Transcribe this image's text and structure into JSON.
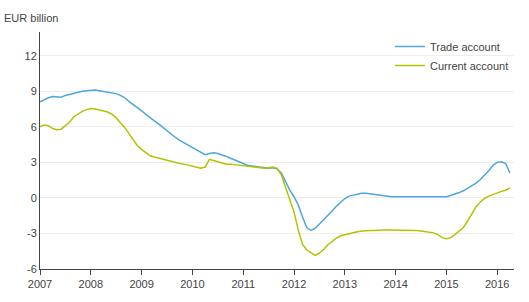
{
  "chart_data": {
    "type": "line",
    "ylabel": "EUR billion",
    "x": [
      2007.0,
      2007.083,
      2007.167,
      2007.25,
      2007.333,
      2007.417,
      2007.5,
      2007.583,
      2007.667,
      2007.75,
      2007.833,
      2007.917,
      2008.0,
      2008.083,
      2008.167,
      2008.25,
      2008.333,
      2008.417,
      2008.5,
      2008.583,
      2008.667,
      2008.75,
      2008.833,
      2008.917,
      2009.0,
      2009.083,
      2009.167,
      2009.25,
      2009.333,
      2009.417,
      2009.5,
      2009.583,
      2009.667,
      2009.75,
      2009.833,
      2009.917,
      2010.0,
      2010.083,
      2010.167,
      2010.25,
      2010.333,
      2010.417,
      2010.5,
      2010.583,
      2010.667,
      2010.75,
      2010.833,
      2010.917,
      2011.0,
      2011.083,
      2011.167,
      2011.25,
      2011.333,
      2011.417,
      2011.5,
      2011.583,
      2011.667,
      2011.75,
      2011.833,
      2011.917,
      2012.0,
      2012.083,
      2012.167,
      2012.25,
      2012.333,
      2012.417,
      2012.5,
      2012.583,
      2012.667,
      2012.75,
      2012.833,
      2012.917,
      2013.0,
      2013.083,
      2013.167,
      2013.25,
      2013.333,
      2013.417,
      2013.5,
      2013.583,
      2013.667,
      2013.75,
      2013.833,
      2013.917,
      2014.0,
      2014.083,
      2014.167,
      2014.25,
      2014.333,
      2014.417,
      2014.5,
      2014.583,
      2014.667,
      2014.75,
      2014.833,
      2014.917,
      2015.0,
      2015.083,
      2015.167,
      2015.25,
      2015.333,
      2015.417,
      2015.5,
      2015.583,
      2015.667,
      2015.75,
      2015.833,
      2015.917,
      2016.0,
      2016.083,
      2016.167,
      2016.25
    ],
    "series": [
      {
        "name": "Trade account",
        "color": "#4da6dc",
        "values": [
          8.1,
          8.3,
          8.45,
          8.55,
          8.5,
          8.5,
          8.65,
          8.75,
          8.85,
          8.9,
          9.0,
          9.05,
          9.1,
          9.1,
          9.05,
          9.0,
          8.95,
          8.9,
          8.8,
          8.65,
          8.45,
          8.15,
          7.9,
          7.65,
          7.35,
          7.05,
          6.75,
          6.5,
          6.25,
          5.95,
          5.65,
          5.35,
          5.1,
          4.85,
          4.65,
          4.45,
          4.25,
          4.05,
          3.85,
          3.65,
          3.75,
          3.8,
          3.75,
          3.65,
          3.5,
          3.35,
          3.2,
          3.0,
          2.85,
          2.75,
          2.7,
          2.65,
          2.55,
          2.5,
          2.5,
          2.55,
          2.45,
          2.1,
          1.4,
          0.65,
          0.1,
          -0.6,
          -1.6,
          -2.5,
          -2.75,
          -2.55,
          -2.2,
          -1.85,
          -1.5,
          -1.1,
          -0.7,
          -0.35,
          -0.05,
          0.15,
          0.25,
          0.35,
          0.4,
          0.4,
          0.35,
          0.3,
          0.2,
          0.15,
          0.1,
          0.1,
          0.1,
          0.1,
          0.1,
          0.1,
          0.1,
          0.1,
          0.1,
          0.1,
          0.05,
          0.05,
          0.05,
          0.05,
          0.1,
          0.2,
          0.3,
          0.45,
          0.6,
          0.8,
          1.0,
          1.25,
          1.55,
          1.9,
          2.3,
          2.75,
          3.0,
          3.05,
          2.9,
          2.1
        ]
      },
      {
        "name": "Current account",
        "color": "#b5c200",
        "values": [
          6.0,
          6.15,
          6.1,
          5.85,
          5.75,
          5.8,
          6.1,
          6.4,
          6.85,
          7.1,
          7.3,
          7.45,
          7.55,
          7.5,
          7.4,
          7.3,
          7.25,
          7.05,
          6.75,
          6.35,
          5.95,
          5.45,
          4.9,
          4.4,
          4.1,
          3.8,
          3.55,
          3.45,
          3.35,
          3.25,
          3.2,
          3.1,
          3.0,
          2.9,
          2.85,
          2.75,
          2.65,
          2.55,
          2.5,
          2.6,
          3.25,
          3.15,
          3.05,
          2.95,
          2.85,
          2.85,
          2.8,
          2.75,
          2.7,
          2.65,
          2.6,
          2.6,
          2.55,
          2.5,
          2.55,
          2.6,
          2.5,
          1.95,
          0.9,
          -0.1,
          -1.2,
          -2.7,
          -3.9,
          -4.4,
          -4.65,
          -4.85,
          -4.65,
          -4.35,
          -3.95,
          -3.65,
          -3.4,
          -3.2,
          -3.1,
          -3.0,
          -2.9,
          -2.85,
          -2.8,
          -2.75,
          -2.75,
          -2.75,
          -2.7,
          -2.7,
          -2.7,
          -2.7,
          -2.7,
          -2.7,
          -2.7,
          -2.7,
          -2.75,
          -2.75,
          -2.8,
          -2.85,
          -2.9,
          -2.95,
          -3.1,
          -3.35,
          -3.45,
          -3.35,
          -3.1,
          -2.8,
          -2.5,
          -1.95,
          -1.35,
          -0.75,
          -0.35,
          -0.05,
          0.15,
          0.3,
          0.45,
          0.55,
          0.65,
          0.85
        ]
      }
    ],
    "xlim": [
      2007.0,
      2016.33
    ],
    "xticks": [
      2007,
      2008,
      2009,
      2010,
      2011,
      2012,
      2013,
      2014,
      2015,
      2016
    ],
    "ylim": [
      -6,
      14
    ],
    "yticks": [
      -6,
      -3,
      0,
      3,
      6,
      9,
      12
    ],
    "grid": true,
    "legend": "upper right"
  }
}
